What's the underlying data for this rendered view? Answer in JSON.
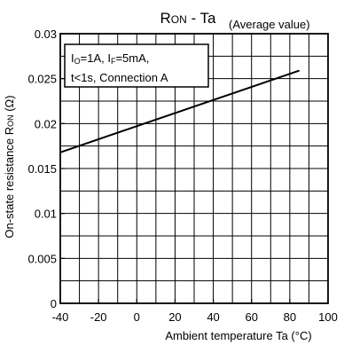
{
  "chart_data": {
    "type": "line",
    "title_main": "R",
    "title_main_sub": "ON",
    "title_main_rest": " - Ta",
    "title_note": "(Average value)",
    "xlabel": "Ambient temperature Ta (°C)",
    "ylabel_pre": "On-state resistance R",
    "ylabel_sub": "ON",
    "ylabel_post": " (Ω)",
    "xlim": [
      -40,
      100
    ],
    "ylim": [
      0,
      0.03
    ],
    "x_ticks": [
      -40,
      -20,
      0,
      20,
      40,
      60,
      80,
      100
    ],
    "x_tick_labels": [
      "-40",
      "-20",
      "0",
      "20",
      "40",
      "60",
      "80",
      "100"
    ],
    "y_ticks": [
      0,
      0.005,
      0.01,
      0.015,
      0.02,
      0.025,
      0.03
    ],
    "y_tick_labels": [
      "0",
      "0.005",
      "0.01",
      "0.015",
      "0.02",
      "0.025",
      "0.03"
    ],
    "x_grid_step": 10,
    "y_grid_step": 0.0025,
    "grid": true,
    "conditions": {
      "line1_a": "I",
      "line1_a_sub": "O",
      "line1_b": "=1A, I",
      "line1_b_sub": "F",
      "line1_c": "=5mA,",
      "line2": "t<1s, Connection A"
    },
    "series": [
      {
        "x": [
          -40,
          85
        ],
        "y": [
          0.0168,
          0.0259
        ]
      }
    ]
  }
}
